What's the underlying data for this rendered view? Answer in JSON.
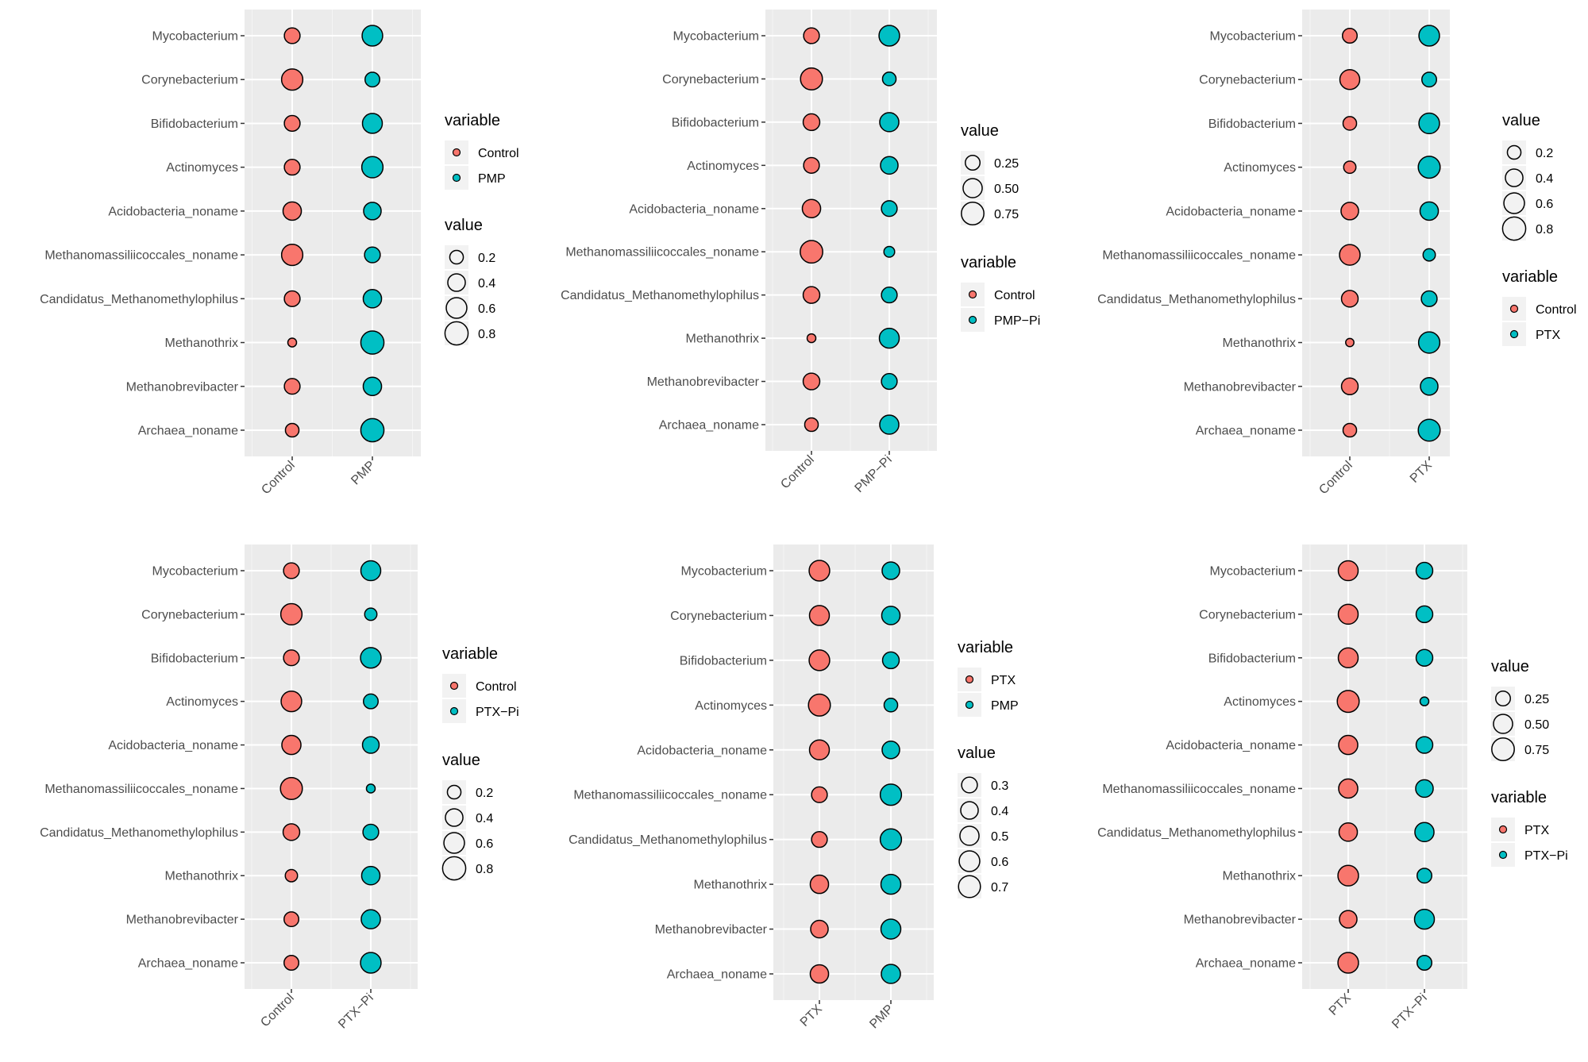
{
  "chart_data": [
    {
      "type": "bubble",
      "categories": [
        "Control",
        "PMP"
      ],
      "taxa": [
        "Mycobacterium",
        "Corynebacterium",
        "Bifidobacterium",
        "Actinomyces",
        "Acidobacteria_noname",
        "Methanomassiliicoccales_noname",
        "Candidatus_Methanomethylophilus",
        "Methanothrix",
        "Methanobrevibacter",
        "Archaea_noname"
      ],
      "series": [
        {
          "name": "Control",
          "color": "#F8766D",
          "values": [
            0.3,
            0.65,
            0.3,
            0.3,
            0.45,
            0.65,
            0.3,
            0.05,
            0.3,
            0.2
          ]
        },
        {
          "name": "PMP",
          "color": "#00BFC4",
          "values": [
            0.6,
            0.25,
            0.55,
            0.65,
            0.4,
            0.3,
            0.45,
            0.8,
            0.45,
            0.8
          ]
        }
      ],
      "legend_order": [
        "variable",
        "value"
      ],
      "size_legend": {
        "title": "value",
        "labels": [
          "0.2",
          "0.4",
          "0.6",
          "0.8"
        ],
        "values": [
          0.2,
          0.4,
          0.6,
          0.8
        ]
      },
      "color_legend": {
        "title": "variable",
        "labels": [
          "Control",
          "PMP"
        ]
      }
    },
    {
      "type": "bubble",
      "categories": [
        "Control",
        "PMP−Pi"
      ],
      "taxa": [
        "Mycobacterium",
        "Corynebacterium",
        "Bifidobacterium",
        "Actinomyces",
        "Acidobacteria_noname",
        "Methanomassiliicoccales_noname",
        "Candidatus_Methanomethylophilus",
        "Methanothrix",
        "Methanobrevibacter",
        "Archaea_noname"
      ],
      "series": [
        {
          "name": "Control",
          "color": "#F8766D",
          "values": [
            0.3,
            0.7,
            0.35,
            0.3,
            0.45,
            0.75,
            0.35,
            0.05,
            0.35,
            0.2
          ]
        },
        {
          "name": "PMP−Pi",
          "color": "#00BFC4",
          "values": [
            0.6,
            0.2,
            0.5,
            0.4,
            0.3,
            0.1,
            0.3,
            0.55,
            0.3,
            0.5
          ]
        }
      ],
      "legend_order": [
        "value",
        "variable"
      ],
      "size_legend": {
        "title": "value",
        "labels": [
          "0.25",
          "0.50",
          "0.75"
        ],
        "values": [
          0.25,
          0.5,
          0.75
        ]
      },
      "color_legend": {
        "title": "variable",
        "labels": [
          "Control",
          "PMP−Pi"
        ]
      }
    },
    {
      "type": "bubble",
      "categories": [
        "Control",
        "PTX"
      ],
      "taxa": [
        "Mycobacterium",
        "Corynebacterium",
        "Bifidobacterium",
        "Actinomyces",
        "Acidobacteria_noname",
        "Methanomassiliicoccales_noname",
        "Candidatus_Methanomethylophilus",
        "Methanothrix",
        "Methanobrevibacter",
        "Archaea_noname"
      ],
      "series": [
        {
          "name": "Control",
          "color": "#F8766D",
          "values": [
            0.25,
            0.55,
            0.2,
            0.15,
            0.4,
            0.6,
            0.35,
            0.04,
            0.35,
            0.2
          ]
        },
        {
          "name": "PTX",
          "color": "#00BFC4",
          "values": [
            0.6,
            0.25,
            0.6,
            0.7,
            0.45,
            0.15,
            0.3,
            0.65,
            0.4,
            0.7
          ]
        }
      ],
      "legend_order": [
        "value",
        "variable"
      ],
      "size_legend": {
        "title": "value",
        "labels": [
          "0.2",
          "0.4",
          "0.6",
          "0.8"
        ],
        "values": [
          0.2,
          0.4,
          0.6,
          0.8
        ]
      },
      "color_legend": {
        "title": "variable",
        "labels": [
          "Control",
          "PTX"
        ]
      }
    },
    {
      "type": "bubble",
      "categories": [
        "Control",
        "PTX−Pi"
      ],
      "taxa": [
        "Mycobacterium",
        "Corynebacterium",
        "Bifidobacterium",
        "Actinomyces",
        "Acidobacteria_noname",
        "Methanomassiliicoccales_noname",
        "Candidatus_Methanomethylophilus",
        "Methanothrix",
        "Methanobrevibacter",
        "Archaea_noname"
      ],
      "series": [
        {
          "name": "Control",
          "color": "#F8766D",
          "values": [
            0.3,
            0.65,
            0.3,
            0.6,
            0.5,
            0.7,
            0.35,
            0.15,
            0.25,
            0.25
          ]
        },
        {
          "name": "PTX−Pi",
          "color": "#00BFC4",
          "values": [
            0.55,
            0.15,
            0.6,
            0.25,
            0.35,
            0.05,
            0.3,
            0.45,
            0.5,
            0.6
          ]
        }
      ],
      "legend_order": [
        "variable",
        "value"
      ],
      "size_legend": {
        "title": "value",
        "labels": [
          "0.2",
          "0.4",
          "0.6",
          "0.8"
        ],
        "values": [
          0.2,
          0.4,
          0.6,
          0.8
        ]
      },
      "color_legend": {
        "title": "variable",
        "labels": [
          "Control",
          "PTX−Pi"
        ]
      }
    },
    {
      "type": "bubble",
      "categories": [
        "PTX",
        "PMP"
      ],
      "taxa": [
        "Mycobacterium",
        "Corynebacterium",
        "Bifidobacterium",
        "Actinomyces",
        "Acidobacteria_noname",
        "Methanomassiliicoccales_noname",
        "Candidatus_Methanomethylophilus",
        "Methanothrix",
        "Methanobrevibacter",
        "Archaea_noname"
      ],
      "series": [
        {
          "name": "PTX",
          "color": "#F8766D",
          "values": [
            0.6,
            0.55,
            0.6,
            0.7,
            0.55,
            0.3,
            0.3,
            0.45,
            0.4,
            0.45
          ]
        },
        {
          "name": "PMP",
          "color": "#00BFC4",
          "values": [
            0.4,
            0.45,
            0.35,
            0.2,
            0.4,
            0.65,
            0.65,
            0.55,
            0.55,
            0.5
          ]
        }
      ],
      "legend_order": [
        "variable",
        "value"
      ],
      "size_legend": {
        "title": "value",
        "labels": [
          "0.3",
          "0.4",
          "0.5",
          "0.6",
          "0.7"
        ],
        "values": [
          0.3,
          0.4,
          0.5,
          0.6,
          0.7
        ]
      },
      "color_legend": {
        "title": "variable",
        "labels": [
          "PTX",
          "PMP"
        ]
      }
    },
    {
      "type": "bubble",
      "categories": [
        "PTX",
        "PTX−Pi"
      ],
      "taxa": [
        "Mycobacterium",
        "Corynebacterium",
        "Bifidobacterium",
        "Actinomyces",
        "Acidobacteria_noname",
        "Methanomassiliicoccales_noname",
        "Candidatus_Methanomethylophilus",
        "Methanothrix",
        "Methanobrevibacter",
        "Archaea_noname"
      ],
      "series": [
        {
          "name": "PTX",
          "color": "#F8766D",
          "values": [
            0.55,
            0.55,
            0.55,
            0.7,
            0.5,
            0.5,
            0.45,
            0.6,
            0.4,
            0.6
          ]
        },
        {
          "name": "PTX−Pi",
          "color": "#00BFC4",
          "values": [
            0.35,
            0.35,
            0.35,
            0.05,
            0.35,
            0.4,
            0.5,
            0.25,
            0.55,
            0.25
          ]
        }
      ],
      "legend_order": [
        "value",
        "variable"
      ],
      "size_legend": {
        "title": "value",
        "labels": [
          "0.25",
          "0.50",
          "0.75"
        ],
        "values": [
          0.25,
          0.5,
          0.75
        ]
      },
      "color_legend": {
        "title": "variable",
        "labels": [
          "PTX",
          "PTX−Pi"
        ]
      }
    }
  ]
}
